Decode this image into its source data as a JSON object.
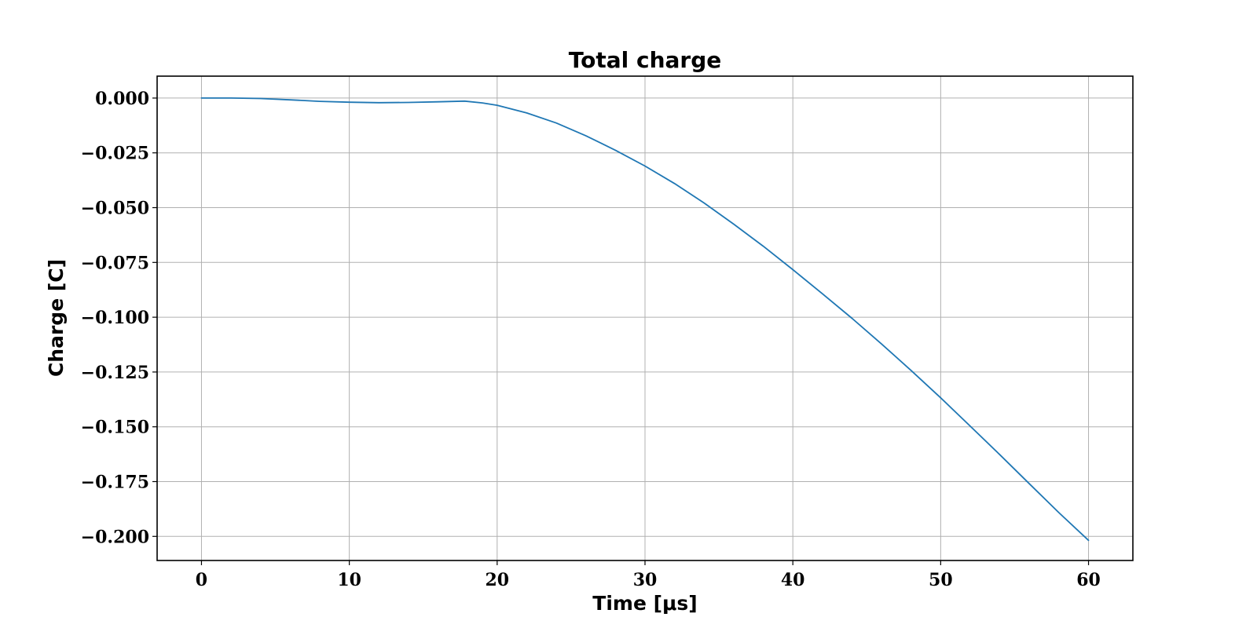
{
  "chart_data": {
    "type": "line",
    "title": "Total charge",
    "xlabel": "Time [μs]",
    "ylabel": "Charge [C]",
    "xlim": [
      -3,
      63
    ],
    "ylim": [
      -0.211,
      0.01
    ],
    "xticks": [
      0,
      10,
      20,
      30,
      40,
      50,
      60
    ],
    "xtick_labels": [
      "0",
      "10",
      "20",
      "30",
      "40",
      "50",
      "60"
    ],
    "yticks": [
      0.0,
      -0.025,
      -0.05,
      -0.075,
      -0.1,
      -0.125,
      -0.15,
      -0.175,
      -0.2
    ],
    "ytick_labels": [
      "0.000",
      "−0.025",
      "−0.050",
      "−0.075",
      "−0.100",
      "−0.125",
      "−0.150",
      "−0.175",
      "−0.200"
    ],
    "grid": true,
    "series": [
      {
        "color": "#1f77b4",
        "x": [
          0,
          2,
          4,
          6,
          8,
          10,
          12,
          14,
          16,
          17.8,
          19,
          20,
          22,
          24,
          26,
          28,
          30,
          32,
          34,
          36,
          38,
          40,
          42,
          44,
          46,
          48,
          50,
          52,
          54,
          56,
          58,
          60
        ],
        "y": [
          0.0,
          0.0,
          -0.0002,
          -0.0008,
          -0.0015,
          -0.0019,
          -0.0021,
          -0.002,
          -0.0017,
          -0.0014,
          -0.0022,
          -0.0033,
          -0.0068,
          -0.0114,
          -0.0172,
          -0.0238,
          -0.031,
          -0.039,
          -0.0479,
          -0.0575,
          -0.0676,
          -0.0783,
          -0.0893,
          -0.1005,
          -0.1122,
          -0.1243,
          -0.1368,
          -0.1497,
          -0.1627,
          -0.176,
          -0.1892,
          -0.2018
        ]
      }
    ]
  }
}
